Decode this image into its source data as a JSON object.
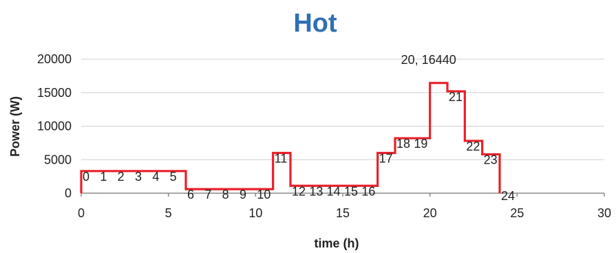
{
  "chart_data": {
    "type": "line",
    "title": "Hot",
    "xlabel": "time (h)",
    "ylabel": "Power (W)",
    "xlim": [
      0,
      30
    ],
    "ylim": [
      0,
      20000
    ],
    "x_ticks": [
      0,
      5,
      10,
      15,
      20,
      25,
      30
    ],
    "y_ticks": [
      0,
      5000,
      10000,
      15000,
      20000
    ],
    "grid": true,
    "legend": "none",
    "series": [
      {
        "color": "#e8202a",
        "step": "post",
        "points": [
          {
            "x": 0,
            "y": 3300,
            "label": "0"
          },
          {
            "x": 1,
            "y": 3300,
            "label": "1"
          },
          {
            "x": 2,
            "y": 3300,
            "label": "2"
          },
          {
            "x": 3,
            "y": 3300,
            "label": "3"
          },
          {
            "x": 4,
            "y": 3300,
            "label": "4"
          },
          {
            "x": 5,
            "y": 3300,
            "label": "5"
          },
          {
            "x": 6,
            "y": 600,
            "label": "6"
          },
          {
            "x": 7,
            "y": 600,
            "label": "7"
          },
          {
            "x": 8,
            "y": 600,
            "label": "8"
          },
          {
            "x": 9,
            "y": 600,
            "label": "9"
          },
          {
            "x": 10,
            "y": 600,
            "label": "10"
          },
          {
            "x": 11,
            "y": 6000,
            "label": "11"
          },
          {
            "x": 12,
            "y": 1100,
            "label": "12"
          },
          {
            "x": 13,
            "y": 1100,
            "label": "13"
          },
          {
            "x": 14,
            "y": 1100,
            "label": "14"
          },
          {
            "x": 15,
            "y": 1100,
            "label": "15"
          },
          {
            "x": 16,
            "y": 1100,
            "label": "16"
          },
          {
            "x": 17,
            "y": 6000,
            "label": "17"
          },
          {
            "x": 18,
            "y": 8200,
            "label": "18"
          },
          {
            "x": 19,
            "y": 8200,
            "label": "19"
          },
          {
            "x": 20,
            "y": 16440,
            "label": "20, 16440"
          },
          {
            "x": 21,
            "y": 15200,
            "label": "21"
          },
          {
            "x": 22,
            "y": 7800,
            "label": "22"
          },
          {
            "x": 23,
            "y": 5800,
            "label": "23"
          },
          {
            "x": 24,
            "y": 0,
            "label": "24"
          }
        ]
      }
    ]
  }
}
